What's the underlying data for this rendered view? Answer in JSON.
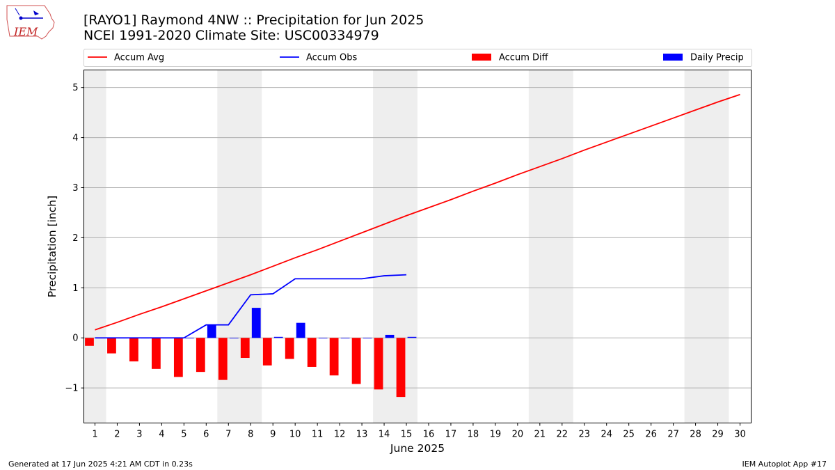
{
  "title_line1": "[RAYO1] Raymond 4NW :: Precipitation for Jun 2025",
  "title_line2": "NCEI 1991-2020 Climate Site: USC00334979",
  "logo": {
    "text": "IEM",
    "icon": "iem-iowa-state-logo"
  },
  "footer_left": "Generated at 17 Jun 2025 4:21 AM CDT in 0.23s",
  "footer_right": "IEM Autoplot App #17",
  "colors": {
    "accum_avg": "#ff0000",
    "accum_obs": "#0000ff",
    "accum_diff": "#ff0000",
    "daily_precip": "#0000ff",
    "weekend_shade": "#eeeeee",
    "grid": "#b0b0b0"
  },
  "chart_data": {
    "type": "bar",
    "xlabel": "June 2025",
    "ylabel": "Precipitation [inch]",
    "xlim": [
      0.5,
      30.5
    ],
    "ylim": [
      -1.7,
      5.35
    ],
    "grid": "horizontal",
    "legend_position": "top",
    "x_ticks": [
      1,
      2,
      3,
      4,
      5,
      6,
      7,
      8,
      9,
      10,
      11,
      12,
      13,
      14,
      15,
      16,
      17,
      18,
      19,
      20,
      21,
      22,
      23,
      24,
      25,
      26,
      27,
      28,
      29,
      30
    ],
    "y_ticks": [
      -1,
      0,
      1,
      2,
      3,
      4,
      5
    ],
    "y_tick_labels": [
      "−1",
      "0",
      "1",
      "2",
      "3",
      "4",
      "5"
    ],
    "shaded_weekend_ranges": [
      [
        0.5,
        1.5
      ],
      [
        6.5,
        8.5
      ],
      [
        13.5,
        15.5
      ],
      [
        20.5,
        22.5
      ],
      [
        27.5,
        29.5
      ]
    ],
    "legend": [
      "Accum Avg",
      "Accum Obs",
      "Accum Diff",
      "Daily Precip"
    ],
    "series": [
      {
        "name": "Accum Avg",
        "type": "line",
        "x": [
          1,
          2,
          3,
          4,
          5,
          6,
          7,
          8,
          9,
          10,
          11,
          12,
          13,
          14,
          15,
          16,
          17,
          18,
          19,
          20,
          21,
          22,
          23,
          24,
          25,
          26,
          27,
          28,
          29,
          30
        ],
        "values": [
          0.16,
          0.31,
          0.47,
          0.62,
          0.78,
          0.94,
          1.1,
          1.26,
          1.43,
          1.6,
          1.76,
          1.93,
          2.1,
          2.27,
          2.44,
          2.6,
          2.76,
          2.93,
          3.09,
          3.26,
          3.42,
          3.58,
          3.75,
          3.91,
          4.07,
          4.23,
          4.39,
          4.55,
          4.71,
          4.86
        ]
      },
      {
        "name": "Accum Obs",
        "type": "line",
        "x": [
          1,
          2,
          3,
          4,
          5,
          6,
          7,
          8,
          9,
          10,
          11,
          12,
          13,
          14,
          15
        ],
        "values": [
          0.0,
          0.0,
          0.0,
          0.0,
          0.0,
          0.26,
          0.26,
          0.86,
          0.88,
          1.18,
          1.18,
          1.18,
          1.18,
          1.24,
          1.26
        ]
      },
      {
        "name": "Accum Diff",
        "type": "bar",
        "x": [
          1,
          2,
          3,
          4,
          5,
          6,
          7,
          8,
          9,
          10,
          11,
          12,
          13,
          14,
          15
        ],
        "values": [
          -0.16,
          -0.31,
          -0.47,
          -0.62,
          -0.78,
          -0.68,
          -0.84,
          -0.4,
          -0.55,
          -0.42,
          -0.58,
          -0.75,
          -0.92,
          -1.03,
          -1.18
        ]
      },
      {
        "name": "Daily Precip",
        "type": "bar",
        "x": [
          1,
          2,
          3,
          4,
          5,
          6,
          7,
          8,
          9,
          10,
          11,
          12,
          13,
          14,
          15
        ],
        "values": [
          0.0,
          0.0,
          0.0,
          0.0,
          0.0,
          0.26,
          0.0,
          0.6,
          0.02,
          0.3,
          0.0,
          0.0,
          0.0,
          0.06,
          0.02
        ]
      }
    ]
  }
}
